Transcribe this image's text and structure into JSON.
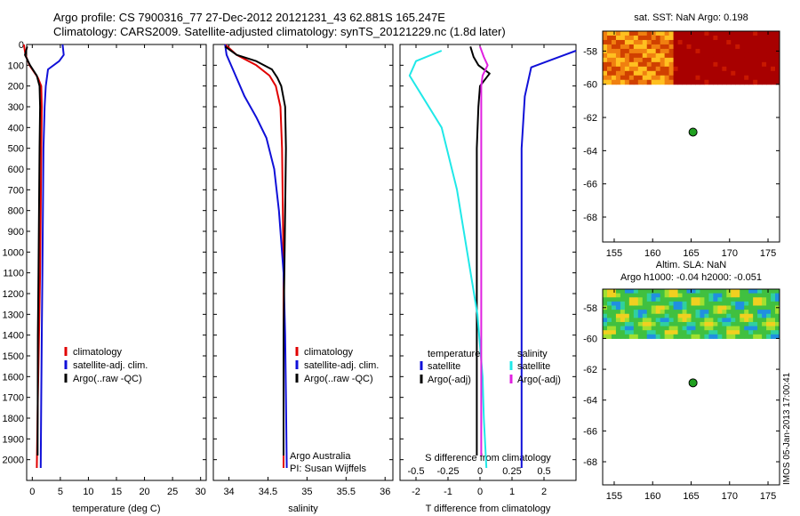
{
  "header": {
    "line1": "Argo profile: CS 7900316_77 27-Dec-2012 20121231_43 62.881S 165.247E",
    "line2": "Climatology: CARS2009. Satellite-adjusted climatology: synTS_20121229.nc (1.8d later)"
  },
  "colors": {
    "climatology": "#e00000",
    "satellite": "#1010d8",
    "argo": "#000000",
    "sat_salinity": "#20e8e8",
    "argo_adj_salinity": "#e020e0",
    "sst_warm": "#a80000",
    "sst_orange": "#f08010",
    "sla_green": "#40c040",
    "marker": "#20a020"
  },
  "chart_data": [
    {
      "type": "line",
      "xlabel": "temperature (deg C)",
      "xlim": [
        -1,
        31
      ],
      "xticks": [
        0,
        5,
        10,
        15,
        20,
        25,
        30
      ],
      "ylim": [
        2100,
        0
      ],
      "yticks": [
        0,
        100,
        200,
        300,
        400,
        500,
        600,
        700,
        800,
        900,
        1000,
        1100,
        1200,
        1300,
        1400,
        1500,
        1600,
        1700,
        1800,
        1900,
        2000
      ],
      "legend": [
        "climatology",
        "satellite-adj. clim.",
        "Argo(..raw -QC)"
      ],
      "legend_placement": "lower-right",
      "series": [
        {
          "name": "climatology",
          "color_key": "climatology",
          "x": [
            -1.5,
            -1.2,
            -0.5,
            1.0,
            1.6,
            1.7,
            1.6,
            1.5,
            1.4,
            1.2,
            1.0,
            0.8
          ],
          "y": [
            0,
            50,
            100,
            160,
            200,
            300,
            500,
            800,
            1100,
            1400,
            1700,
            2040
          ]
        },
        {
          "name": "satellite-adj. clim.",
          "color_key": "satellite",
          "x": [
            5.4,
            5.6,
            4.8,
            2.8,
            2.4,
            2.2,
            2.0,
            1.9,
            1.8,
            1.7,
            1.6,
            1.5
          ],
          "y": [
            0,
            50,
            80,
            120,
            200,
            300,
            500,
            800,
            1100,
            1400,
            1700,
            2040
          ]
        },
        {
          "name": "Argo(..raw -QC)",
          "color_key": "argo",
          "x": [
            -0.9,
            -1.3,
            -0.4,
            0.8,
            1.3,
            1.4,
            1.3,
            1.2,
            1.1,
            1.0,
            0.95
          ],
          "y": [
            10,
            50,
            100,
            150,
            200,
            300,
            500,
            800,
            1100,
            1400,
            1980
          ]
        }
      ]
    },
    {
      "type": "line",
      "xlabel": "salinity",
      "xlim": [
        33.8,
        36.1
      ],
      "xticks": [
        34,
        34.5,
        35,
        35.5,
        36
      ],
      "ylim": [
        2100,
        0
      ],
      "legend": [
        "climatology",
        "satellite-adj. clim.",
        "Argo(..raw -QC)"
      ],
      "legend_placement": "lower-right",
      "annotations": [
        "Argo Australia",
        "PI: Susan Wijffels"
      ],
      "series": [
        {
          "name": "climatology",
          "color_key": "climatology",
          "x": [
            33.95,
            34.1,
            34.35,
            34.52,
            34.6,
            34.66,
            34.68,
            34.69,
            34.7,
            34.7,
            34.7,
            34.7
          ],
          "y": [
            0,
            50,
            100,
            150,
            200,
            300,
            500,
            800,
            1100,
            1400,
            1700,
            2040
          ]
        },
        {
          "name": "satellite-adj. clim.",
          "color_key": "satellite",
          "x": [
            33.95,
            33.97,
            34.05,
            34.2,
            34.35,
            34.48,
            34.58,
            34.64,
            34.7,
            34.72,
            34.73,
            34.74
          ],
          "y": [
            0,
            50,
            120,
            250,
            350,
            450,
            600,
            800,
            1100,
            1400,
            1700,
            2040
          ]
        },
        {
          "name": "Argo(..raw -QC)",
          "color_key": "argo",
          "x": [
            33.95,
            34.1,
            34.35,
            34.55,
            34.62,
            34.67,
            34.72,
            34.73,
            34.72,
            34.71,
            34.7,
            34.7
          ],
          "y": [
            10,
            50,
            80,
            120,
            160,
            200,
            300,
            500,
            800,
            1100,
            1400,
            1980
          ]
        }
      ]
    },
    {
      "type": "line",
      "xlabel": "T difference from climatology",
      "x2label": "S difference from climatology",
      "xlim": [
        -2.5,
        3.0
      ],
      "xticks": [
        -2,
        -1,
        0,
        1,
        2
      ],
      "x2lim": [
        -0.625,
        0.75
      ],
      "x2ticks": [
        -0.5,
        -0.25,
        0,
        0.25,
        0.5
      ],
      "ylim": [
        2100,
        0
      ],
      "legend_temperature": {
        "title": "temperature",
        "items": [
          "satellite",
          "Argo(-adj)"
        ]
      },
      "legend_salinity": {
        "title": "salinity",
        "items": [
          "satellite",
          "Argo(-adj)"
        ]
      },
      "series": [
        {
          "name": "satellite",
          "group": "temperature",
          "color_key": "satellite",
          "x": [
            3.0,
            2.3,
            1.6,
            1.4,
            1.3,
            1.3,
            1.3,
            1.3,
            1.3,
            1.3
          ],
          "y": [
            30,
            70,
            110,
            250,
            500,
            800,
            1100,
            1400,
            1700,
            2040
          ]
        },
        {
          "name": "Argo(-adj)",
          "group": "temperature",
          "color_key": "argo",
          "x": [
            -0.3,
            -0.2,
            -0.05,
            0.3,
            0.0,
            -0.05,
            -0.1,
            -0.1,
            -0.1,
            -0.1,
            -0.1
          ],
          "y": [
            10,
            60,
            100,
            140,
            200,
            300,
            500,
            800,
            1100,
            1400,
            1980
          ]
        },
        {
          "name": "satellite",
          "group": "salinity",
          "color_key": "sat_salinity",
          "s": [
            -0.3,
            -0.5,
            -0.55,
            -0.45,
            -0.3,
            -0.18,
            -0.1,
            -0.02,
            0.02,
            0.03,
            0.05
          ],
          "y": [
            30,
            80,
            150,
            250,
            400,
            700,
            1000,
            1300,
            1600,
            1800,
            2040
          ]
        },
        {
          "name": "Argo(-adj)",
          "group": "salinity",
          "color_key": "argo_adj_salinity",
          "s": [
            0.0,
            0.03,
            0.06,
            0.02,
            0.01,
            0.01,
            0.01,
            0.01,
            0.01,
            0.01,
            0.01
          ],
          "y": [
            10,
            60,
            100,
            150,
            200,
            300,
            500,
            800,
            1100,
            1400,
            1980
          ]
        }
      ]
    },
    {
      "type": "heatmap",
      "title": "sat. SST: NaN Argo: 0.198",
      "xlim": [
        153.5,
        176.5
      ],
      "xticks": [
        155,
        160,
        165,
        170,
        175
      ],
      "ylim": [
        -69.5,
        -56.8
      ],
      "yticks": [
        -58,
        -60,
        -62,
        -64,
        -66,
        -68
      ],
      "data_extent_lat": [
        -60,
        -56.8
      ],
      "marker": {
        "lon": 165.247,
        "lat": -62.881
      }
    },
    {
      "type": "heatmap",
      "title": "Altim. SLA: NaN",
      "subtitle": "Argo h1000: -0.04 h2000: -0.051",
      "xlim": [
        153.5,
        176.5
      ],
      "xticks": [
        155,
        160,
        165,
        170,
        175
      ],
      "ylim": [
        -69.5,
        -56.8
      ],
      "yticks": [
        -58,
        -60,
        -62,
        -64,
        -66,
        -68
      ],
      "data_extent_lat": [
        -60,
        -56.8
      ],
      "marker": {
        "lon": 165.247,
        "lat": -62.881
      }
    }
  ],
  "footer": {
    "timestamp": "IMOS 05-Jan-2013 17:00:41"
  }
}
